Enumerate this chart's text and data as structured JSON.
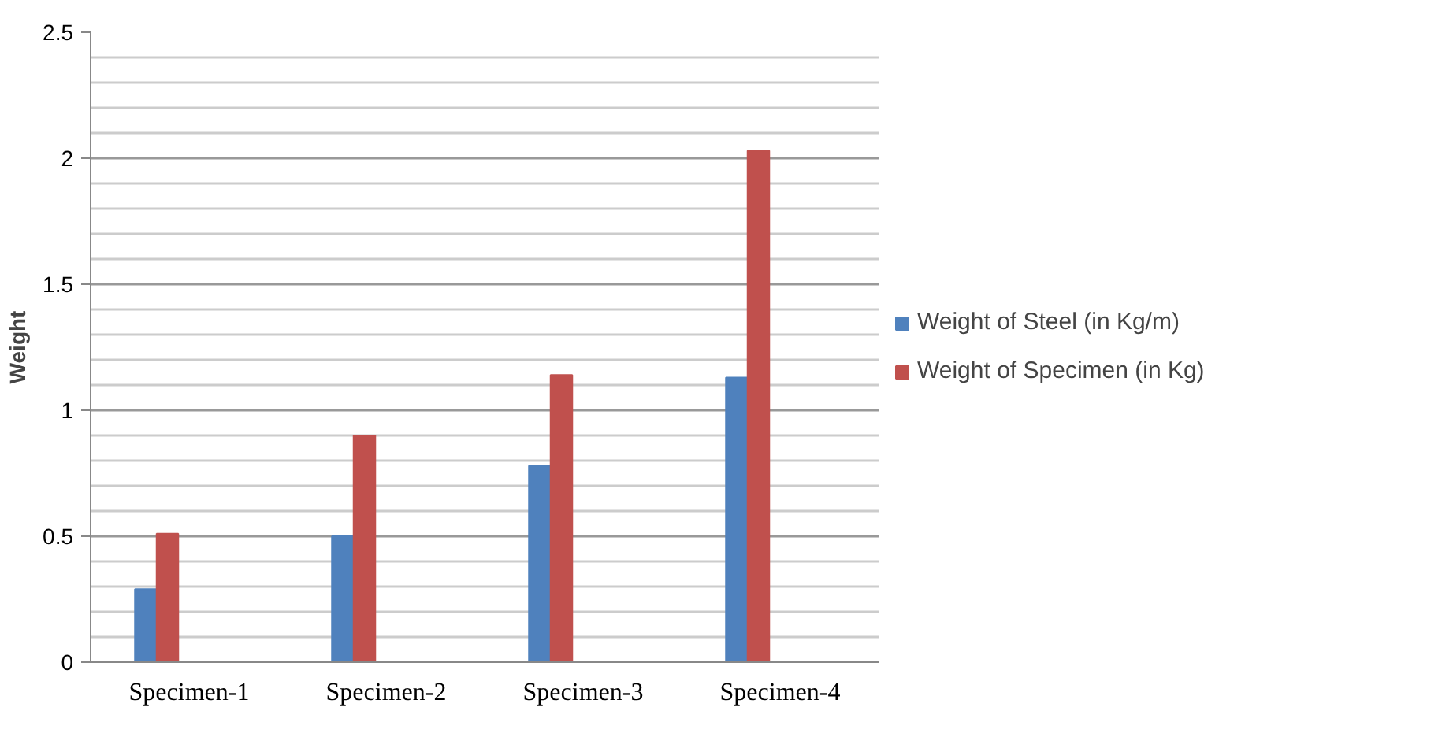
{
  "chart_data": {
    "type": "bar",
    "ylabel": "Weight",
    "categories": [
      "Specimen-1",
      "Specimen-2",
      "Specimen-3",
      "Specimen-4"
    ],
    "series": [
      {
        "name": "Weight of Steel (in Kg/m)",
        "color": "#4f81bd",
        "values": [
          0.29,
          0.5,
          0.78,
          1.13
        ]
      },
      {
        "name": "Weight of Specimen (in Kg)",
        "color": "#c0504d",
        "values": [
          0.51,
          0.9,
          1.14,
          2.03
        ]
      }
    ],
    "ylim": [
      0,
      2.5
    ],
    "yticks": [
      0,
      0.5,
      1,
      1.5,
      2,
      2.5
    ],
    "grid": "y",
    "legend": "right"
  }
}
